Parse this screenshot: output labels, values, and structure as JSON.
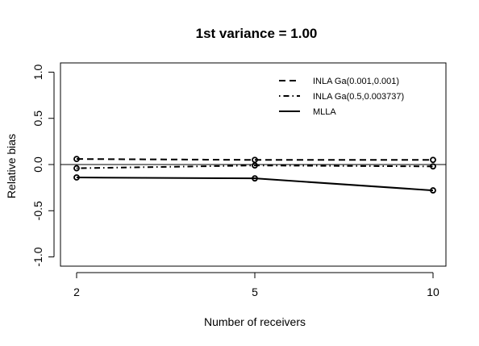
{
  "chart_data": {
    "type": "line",
    "title": "1st variance = 1.00",
    "xlabel": "Number of receivers",
    "ylabel": "Relative bias",
    "categories": [
      "2",
      "5",
      "10"
    ],
    "ylim": [
      -1.1,
      1.1
    ],
    "yticks": [
      "-1.0",
      "-0.5",
      "0.0",
      "0.5",
      "1.0"
    ],
    "ytick_values": [
      -1.0,
      -0.5,
      0.0,
      0.5,
      1.0
    ],
    "reference_line": 0,
    "legend_position": "top-right",
    "series": [
      {
        "name": "INLA Ga(0.001,0.001)",
        "style": "dashed",
        "values": [
          0.06,
          0.05,
          0.05
        ]
      },
      {
        "name": "INLA Ga(0.5,0.003737)",
        "style": "dotdash",
        "values": [
          -0.04,
          -0.01,
          -0.02
        ]
      },
      {
        "name": "MLLA",
        "style": "solid",
        "values": [
          -0.14,
          -0.15,
          -0.28
        ]
      }
    ]
  }
}
